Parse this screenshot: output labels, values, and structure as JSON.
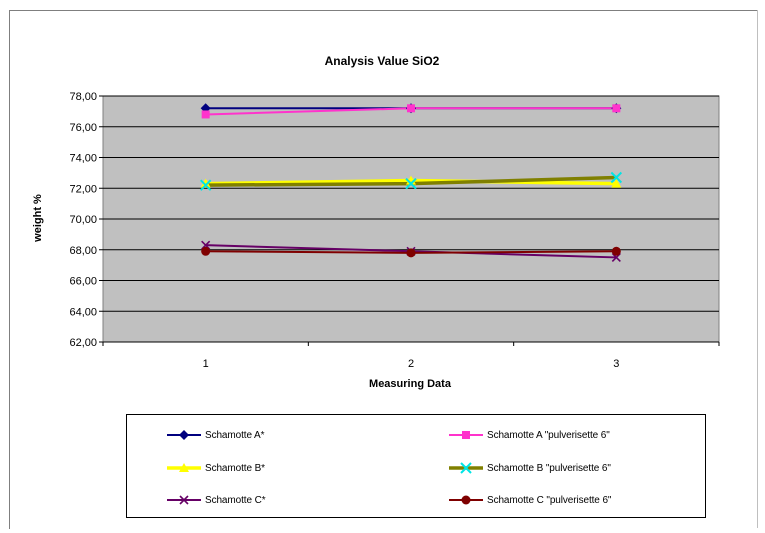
{
  "chart_data": {
    "type": "line",
    "title": "Analysis Value SiO2",
    "xlabel": "Measuring Data",
    "ylabel": "weight %",
    "categories": [
      "1",
      "2",
      "3"
    ],
    "ylim": [
      62,
      78
    ],
    "yticks": [
      "62,00",
      "64,00",
      "66,00",
      "68,00",
      "70,00",
      "72,00",
      "74,00",
      "76,00",
      "78,00"
    ],
    "grid": true,
    "legend_position": "bottom",
    "series": [
      {
        "name": "Schamotte A*",
        "values": [
          77.2,
          77.2,
          77.2
        ],
        "color": "#00007f",
        "marker": "diamond"
      },
      {
        "name": "Schamotte A \"pulverisette 6\"",
        "values": [
          76.8,
          77.2,
          77.2
        ],
        "color": "#ff33cc",
        "marker": "square"
      },
      {
        "name": "Schamotte B*",
        "values": [
          72.3,
          72.5,
          72.3
        ],
        "color": "#ffff00",
        "marker": "triangle"
      },
      {
        "name": "Schamotte B \"pulverisette 6\"",
        "values": [
          72.2,
          72.3,
          72.7
        ],
        "color": "#808000",
        "marker": "x-cyan"
      },
      {
        "name": "Schamotte C*",
        "values": [
          68.3,
          67.9,
          67.5
        ],
        "color": "#660066",
        "marker": "x"
      },
      {
        "name": "Schamotte C \"pulverisette 6\"",
        "values": [
          67.9,
          67.8,
          67.9
        ],
        "color": "#7f0000",
        "marker": "circle"
      }
    ]
  }
}
